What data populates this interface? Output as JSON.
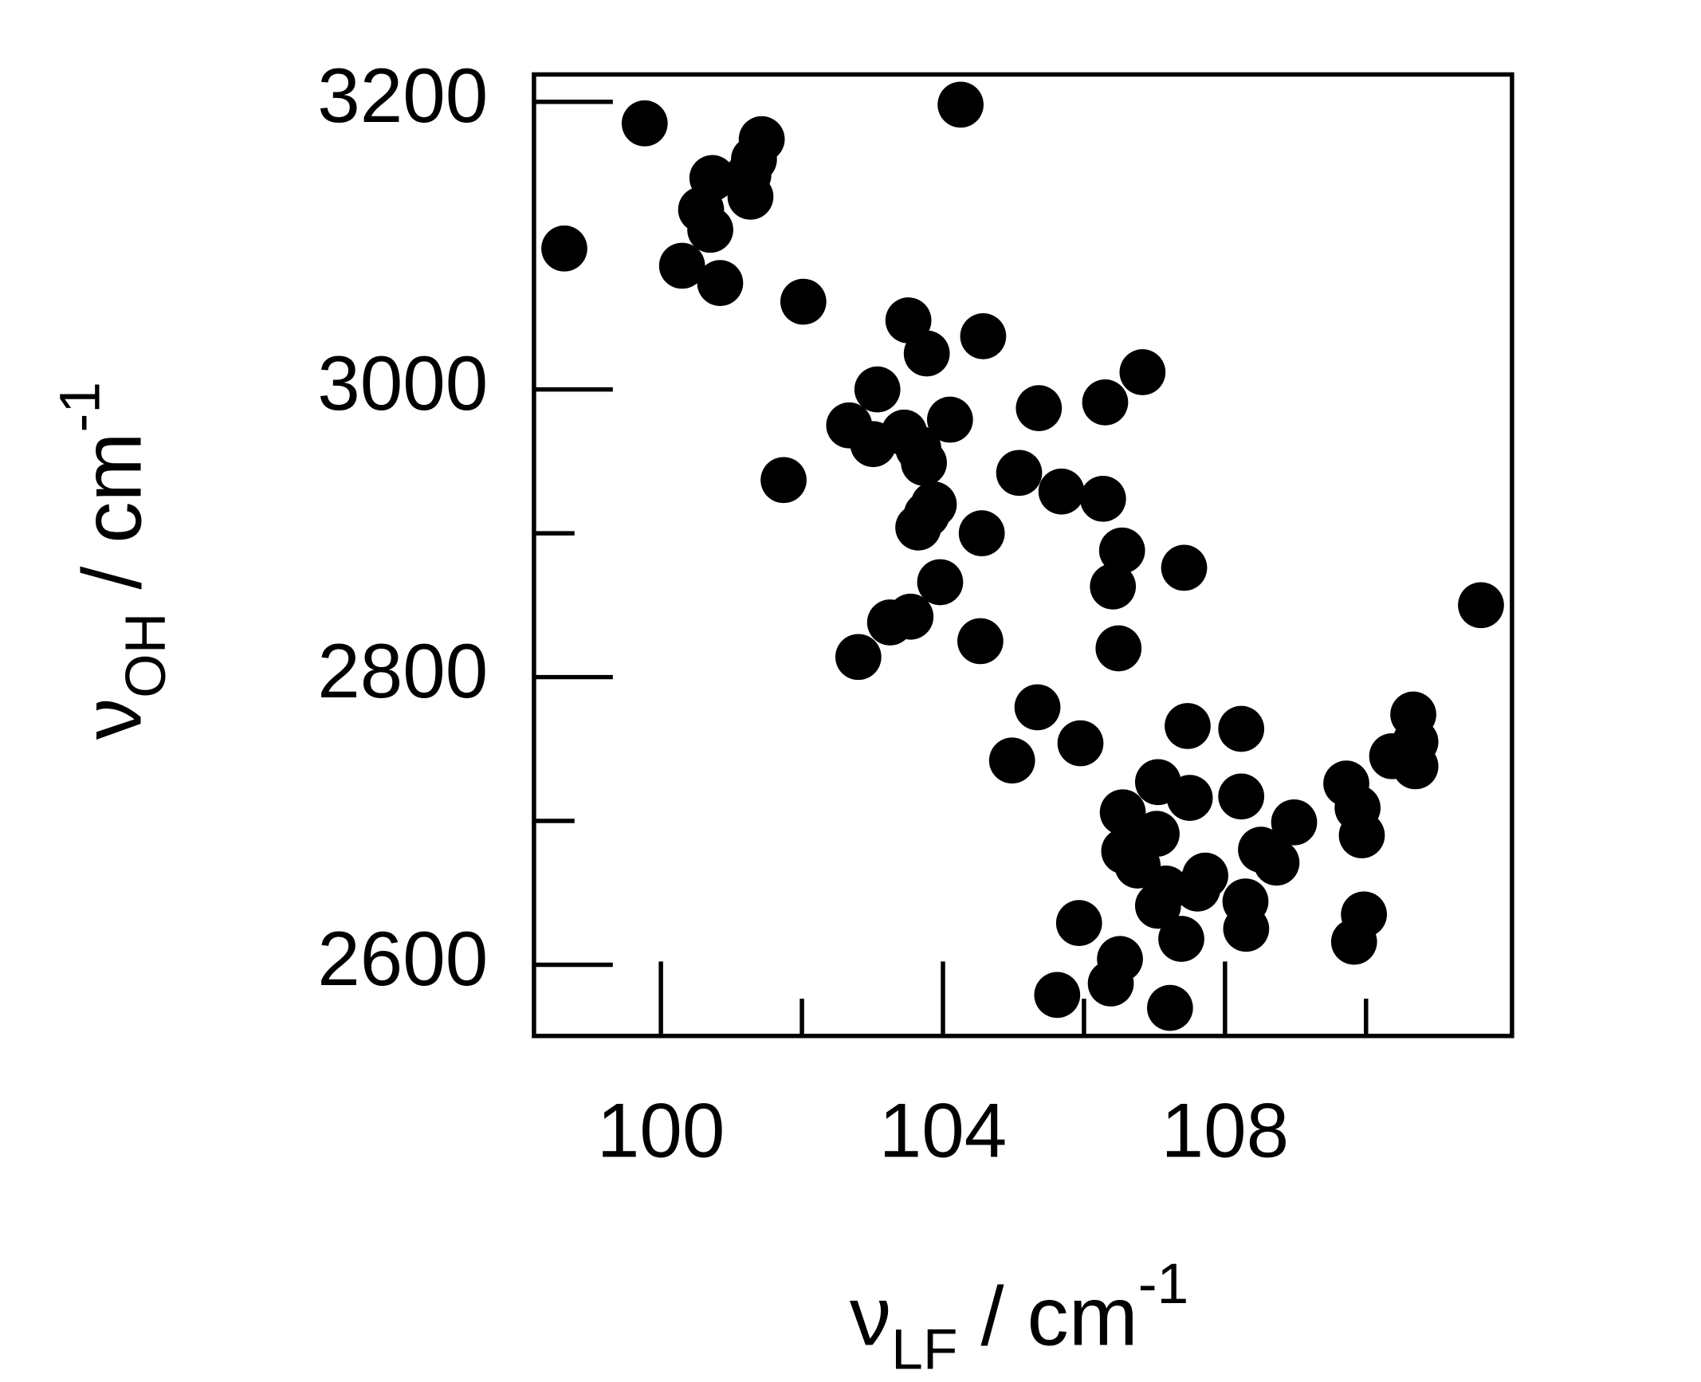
{
  "chart_data": {
    "type": "scatter",
    "x_label": {
      "symbol": "ν",
      "subscript": "LF",
      "unit": " / cm",
      "superscript": "-1"
    },
    "y_label": {
      "symbol": "ν",
      "subscript": "OH",
      "unit": " / cm",
      "superscript": "-1"
    },
    "xlim": [
      98.2,
      112.07
    ],
    "ylim": [
      2550.5,
      3219
    ],
    "xticks": [
      100,
      104,
      108
    ],
    "xticks_minor": [
      102,
      106,
      110
    ],
    "yticks": [
      2600,
      2800,
      3000,
      3200
    ],
    "yticks_minor": [
      2700,
      2900
    ],
    "color": "#000000",
    "x": [
      98.63,
      99.77,
      104.25,
      101.43,
      101.32,
      101.24,
      101.27,
      100.73,
      100.57,
      100.7,
      100.3,
      100.84,
      102.02,
      103.51,
      103.77,
      104.57,
      106.83,
      103.07,
      106.3,
      105.36,
      104.1,
      102.67,
      103.01,
      103.45,
      103.65,
      103.73,
      101.74,
      105.08,
      105.68,
      106.27,
      103.87,
      103.77,
      103.65,
      104.55,
      106.54,
      107.42,
      106.41,
      103.96,
      103.54,
      103.25,
      111.63,
      104.53,
      106.49,
      102.8,
      105.34,
      110.67,
      107.47,
      108.23,
      110.7,
      105.95,
      110.37,
      104.98,
      110.7,
      109.72,
      107.05,
      107.5,
      108.23,
      109.88,
      106.55,
      108.98,
      107.03,
      109.94,
      106.57,
      108.51,
      108.73,
      106.76,
      107.72,
      107.61,
      107.16,
      107.05,
      108.29,
      108.3,
      105.93,
      109.97,
      109.83,
      107.38,
      106.51,
      106.38,
      105.62,
      107.22
    ],
    "y": [
      3098,
      3185,
      3198,
      3174,
      3160,
      3149,
      3134,
      3147,
      3125,
      3111,
      3086,
      3074,
      3061,
      3048,
      3025,
      3037,
      3012,
      3000,
      2991,
      2987,
      2979,
      2975,
      2962,
      2970,
      2959,
      2949,
      2937,
      2942,
      2929,
      2924,
      2920,
      2913,
      2904,
      2900,
      2888,
      2876,
      2863,
      2866,
      2842,
      2838,
      2850,
      2825,
      2820,
      2814,
      2779,
      2774,
      2766,
      2764,
      2755,
      2754,
      2745,
      2742,
      2738,
      2726,
      2727,
      2716,
      2717,
      2709,
      2706,
      2699,
      2691,
      2690,
      2679,
      2680,
      2671,
      2669,
      2662,
      2653,
      2653,
      2641,
      2644,
      2625,
      2629,
      2635,
      2616,
      2618,
      2604,
      2587,
      2579,
      2570
    ]
  }
}
